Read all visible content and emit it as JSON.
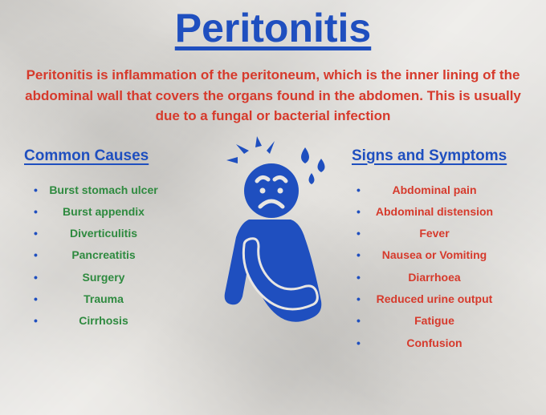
{
  "colors": {
    "blue": "#1f4fbf",
    "red": "#d63a2c",
    "green": "#2e8a3f",
    "bullet": "#1f4fbf",
    "background": "#e8e6e2"
  },
  "typography": {
    "title_fontsize": 50,
    "desc_fontsize": 17,
    "section_title_fontsize": 19,
    "list_fontsize": 14,
    "list_line_height": 1.95,
    "section_title_margin_bottom": 18
  },
  "title": "Peritonitis",
  "description": "Peritonitis is inflammation of the peritoneum, which is the inner lining of the abdominal wall that covers the organs found in the abdomen. This is usually due to a fungal or bacterial infection",
  "causes": {
    "heading": "Common Causes",
    "items": [
      "Burst stomach ulcer",
      "Burst appendix",
      "Diverticulitis",
      "Pancreatitis",
      "Surgery",
      "Trauma",
      "Cirrhosis"
    ]
  },
  "symptoms": {
    "heading": "Signs and Symptoms",
    "items": [
      "Abdominal pain",
      "Abdominal distension",
      "Fever",
      "Nausea or Vomiting",
      "Diarrhoea",
      "Reduced urine output",
      "Fatigue",
      "Confusion"
    ]
  },
  "figure": {
    "fill": "#1f4fbf"
  }
}
